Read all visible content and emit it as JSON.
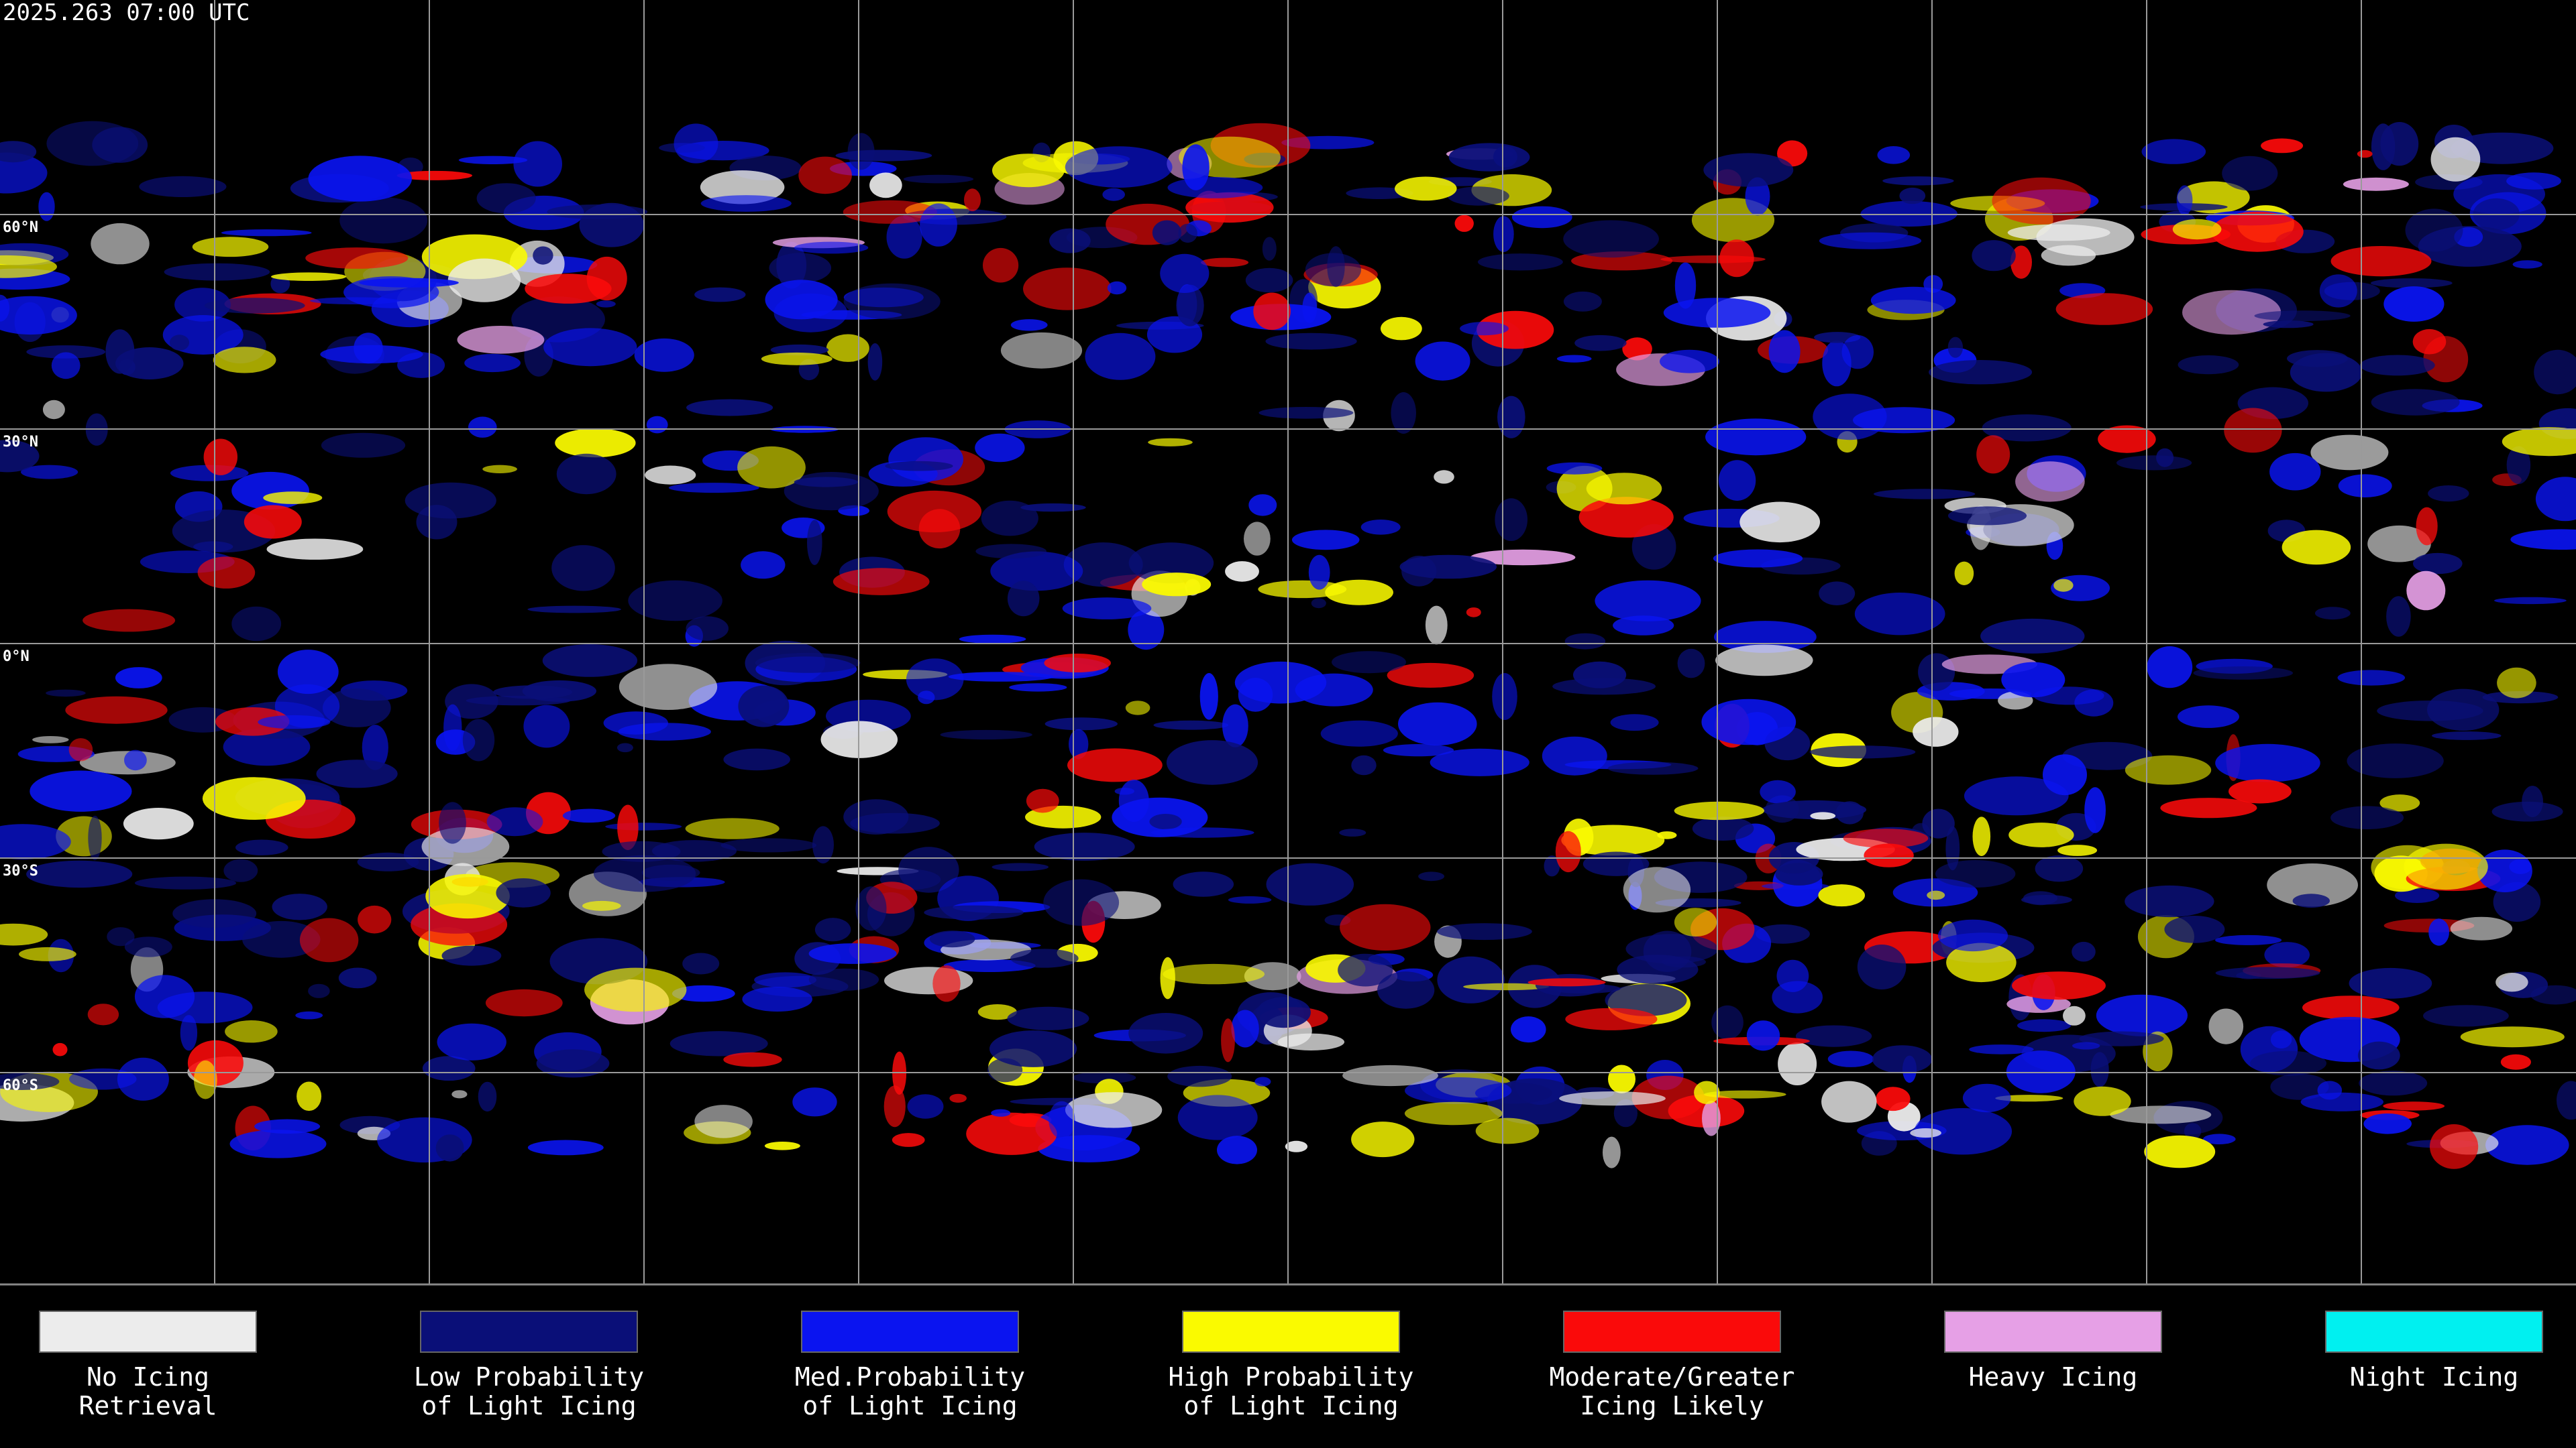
{
  "header": {
    "timestamp": "2025.263 07:00 UTC"
  },
  "latitude_labels": [
    "60°N",
    "30°N",
    "0°N",
    "30°S",
    "60°S"
  ],
  "legend": {
    "items": [
      {
        "label": [
          "No Icing",
          "Retrieval"
        ],
        "color": "#ececec"
      },
      {
        "label": [
          "Low Probability",
          "of Light Icing"
        ],
        "color": "#0a0f78"
      },
      {
        "label": [
          "Med.Probability",
          "of Light Icing"
        ],
        "color": "#0a14f0"
      },
      {
        "label": [
          "High Probability",
          "of Light Icing"
        ],
        "color": "#fafa00"
      },
      {
        "label": [
          "Moderate/Greater",
          "Icing Likely"
        ],
        "color": "#fa0a0a"
      },
      {
        "label": [
          "Heavy Icing"
        ],
        "color": "#e6a0e6"
      },
      {
        "label": [
          "Night Icing"
        ],
        "color": "#00f0f0"
      }
    ]
  }
}
